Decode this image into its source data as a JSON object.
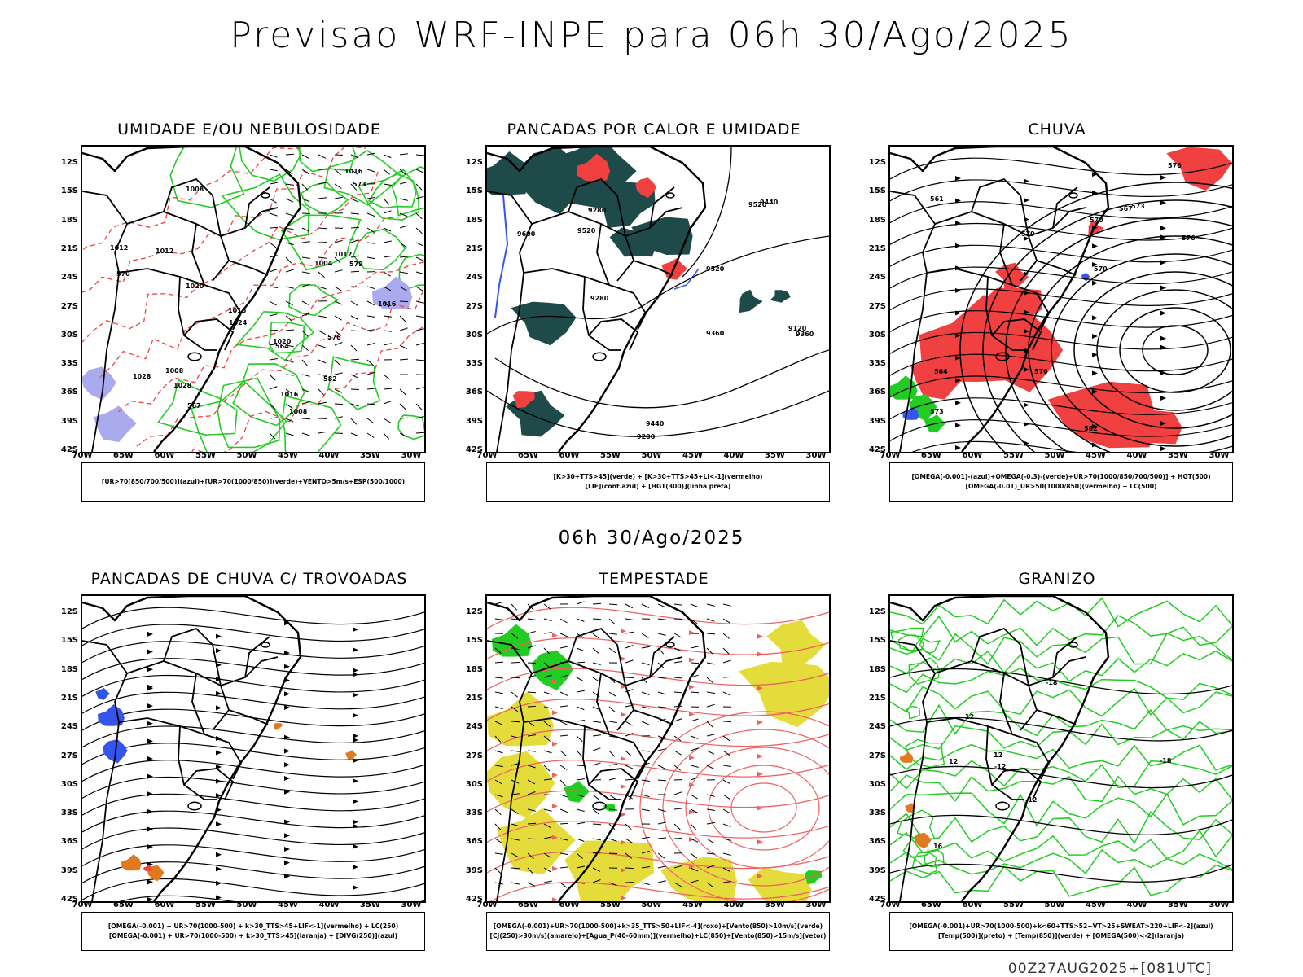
{
  "header": {
    "title": "Previsao WRF-INPE  para 06h 30/Ago/2025",
    "mid_title": "06h 30/Ago/2025",
    "footer": "00Z27AUG2025+[081UTC]"
  },
  "axes": {
    "lat_labels": [
      "12S",
      "15S",
      "18S",
      "21S",
      "24S",
      "27S",
      "30S",
      "33S",
      "36S",
      "39S",
      "42S"
    ],
    "lon_labels": [
      "70W",
      "65W",
      "60W",
      "55W",
      "50W",
      "45W",
      "40W",
      "35W",
      "30W"
    ]
  },
  "panels": [
    {
      "title": "UMIDADE E/OU NEBULOSIDADE",
      "legend": [
        "[UR>70(850/700/500)](azul)+[UR>70(1000/850)](verde)+VENTO>5m/s+ESP(500/1000)"
      ],
      "contour_labels": [
        "1008",
        "1008",
        "1008",
        "1012",
        "1012",
        "1016",
        "1016",
        "1020",
        "1024",
        "1028",
        "1028",
        "1012",
        "1016",
        "1020",
        "1004",
        "1016",
        "570",
        "573",
        "576",
        "579",
        "582",
        "564",
        "567"
      ]
    },
    {
      "title": "PANCADAS POR CALOR E UMIDADE",
      "legend": [
        "[K>30+TTS>45](verde) + [K>30+TTS>45+LI<-1](vermelho)",
        "[LIF](cont.azul) + [HGT(300)](linha preta)"
      ],
      "contour_labels": [
        "9600",
        "9520",
        "9520",
        "9440",
        "9520",
        "9200",
        "9360",
        "9280",
        "9440",
        "9360",
        "9120",
        "9280"
      ]
    },
    {
      "title": "CHUVA",
      "legend": [
        "[OMEGA(-0.001)-(azul)+OMEGA(-0.3)-(verde)+UR>70(1000/850/700/500)] + HGT(500)",
        "[OMEGA(-0.01)_UR>50(1000/850)(vermelho) + LC(500)"
      ],
      "contour_labels": [
        "582",
        "579",
        "576",
        "576",
        "573",
        "570",
        "567",
        "564",
        "561",
        "576",
        "573",
        "570"
      ]
    },
    {
      "title": "PANCADAS DE CHUVA C/ TROVOADAS",
      "legend": [
        "[OMEGA(-0.001) + UR>70(1000-500) + k>30_TTS>45+LIF<-1](vermelho) + LC(250)",
        "[OMEGA(-0.001) + UR>70(1000-500) + k>30_TTS>45](laranja) + [DIVG(250)](azul)"
      ],
      "contour_labels": []
    },
    {
      "title": "TEMPESTADE",
      "legend": [
        "[OMEGA(-0.001)+UR>70(1000-500)+k>35_TTS>50+LIF<-4](roxo)+[Vento(850)>10m/s](verde)",
        "[CJ(250)>30m/s](amarelo)+[Agua_P(40-60mm)](vermelho)+LC(850)+[Vento(850)>15m/s](vetor)"
      ],
      "contour_labels": []
    },
    {
      "title": "GRANIZO",
      "legend": [
        "[OMEGA(-0.001)+UR>70(1000-500)+k<60+TTS>52+VT>25+SWEAT>220+LIF<-2](azul)",
        "[Temp(500)](preto) + [Temp(850)](verde) + [OMEGA(500)<-2](laranja)"
      ],
      "contour_labels": [
        "-12",
        "-12",
        "-18",
        "-18",
        "12",
        "12",
        "12",
        "16"
      ]
    }
  ],
  "colors": {
    "green": "#22cc22",
    "red": "#f04040",
    "blue": "#3355ee",
    "lavender": "#aaaaee",
    "darkteal": "#1e4a4a",
    "yellow": "#e4dc3a",
    "orange": "#e07a20",
    "streamline_red": "#f06060"
  }
}
